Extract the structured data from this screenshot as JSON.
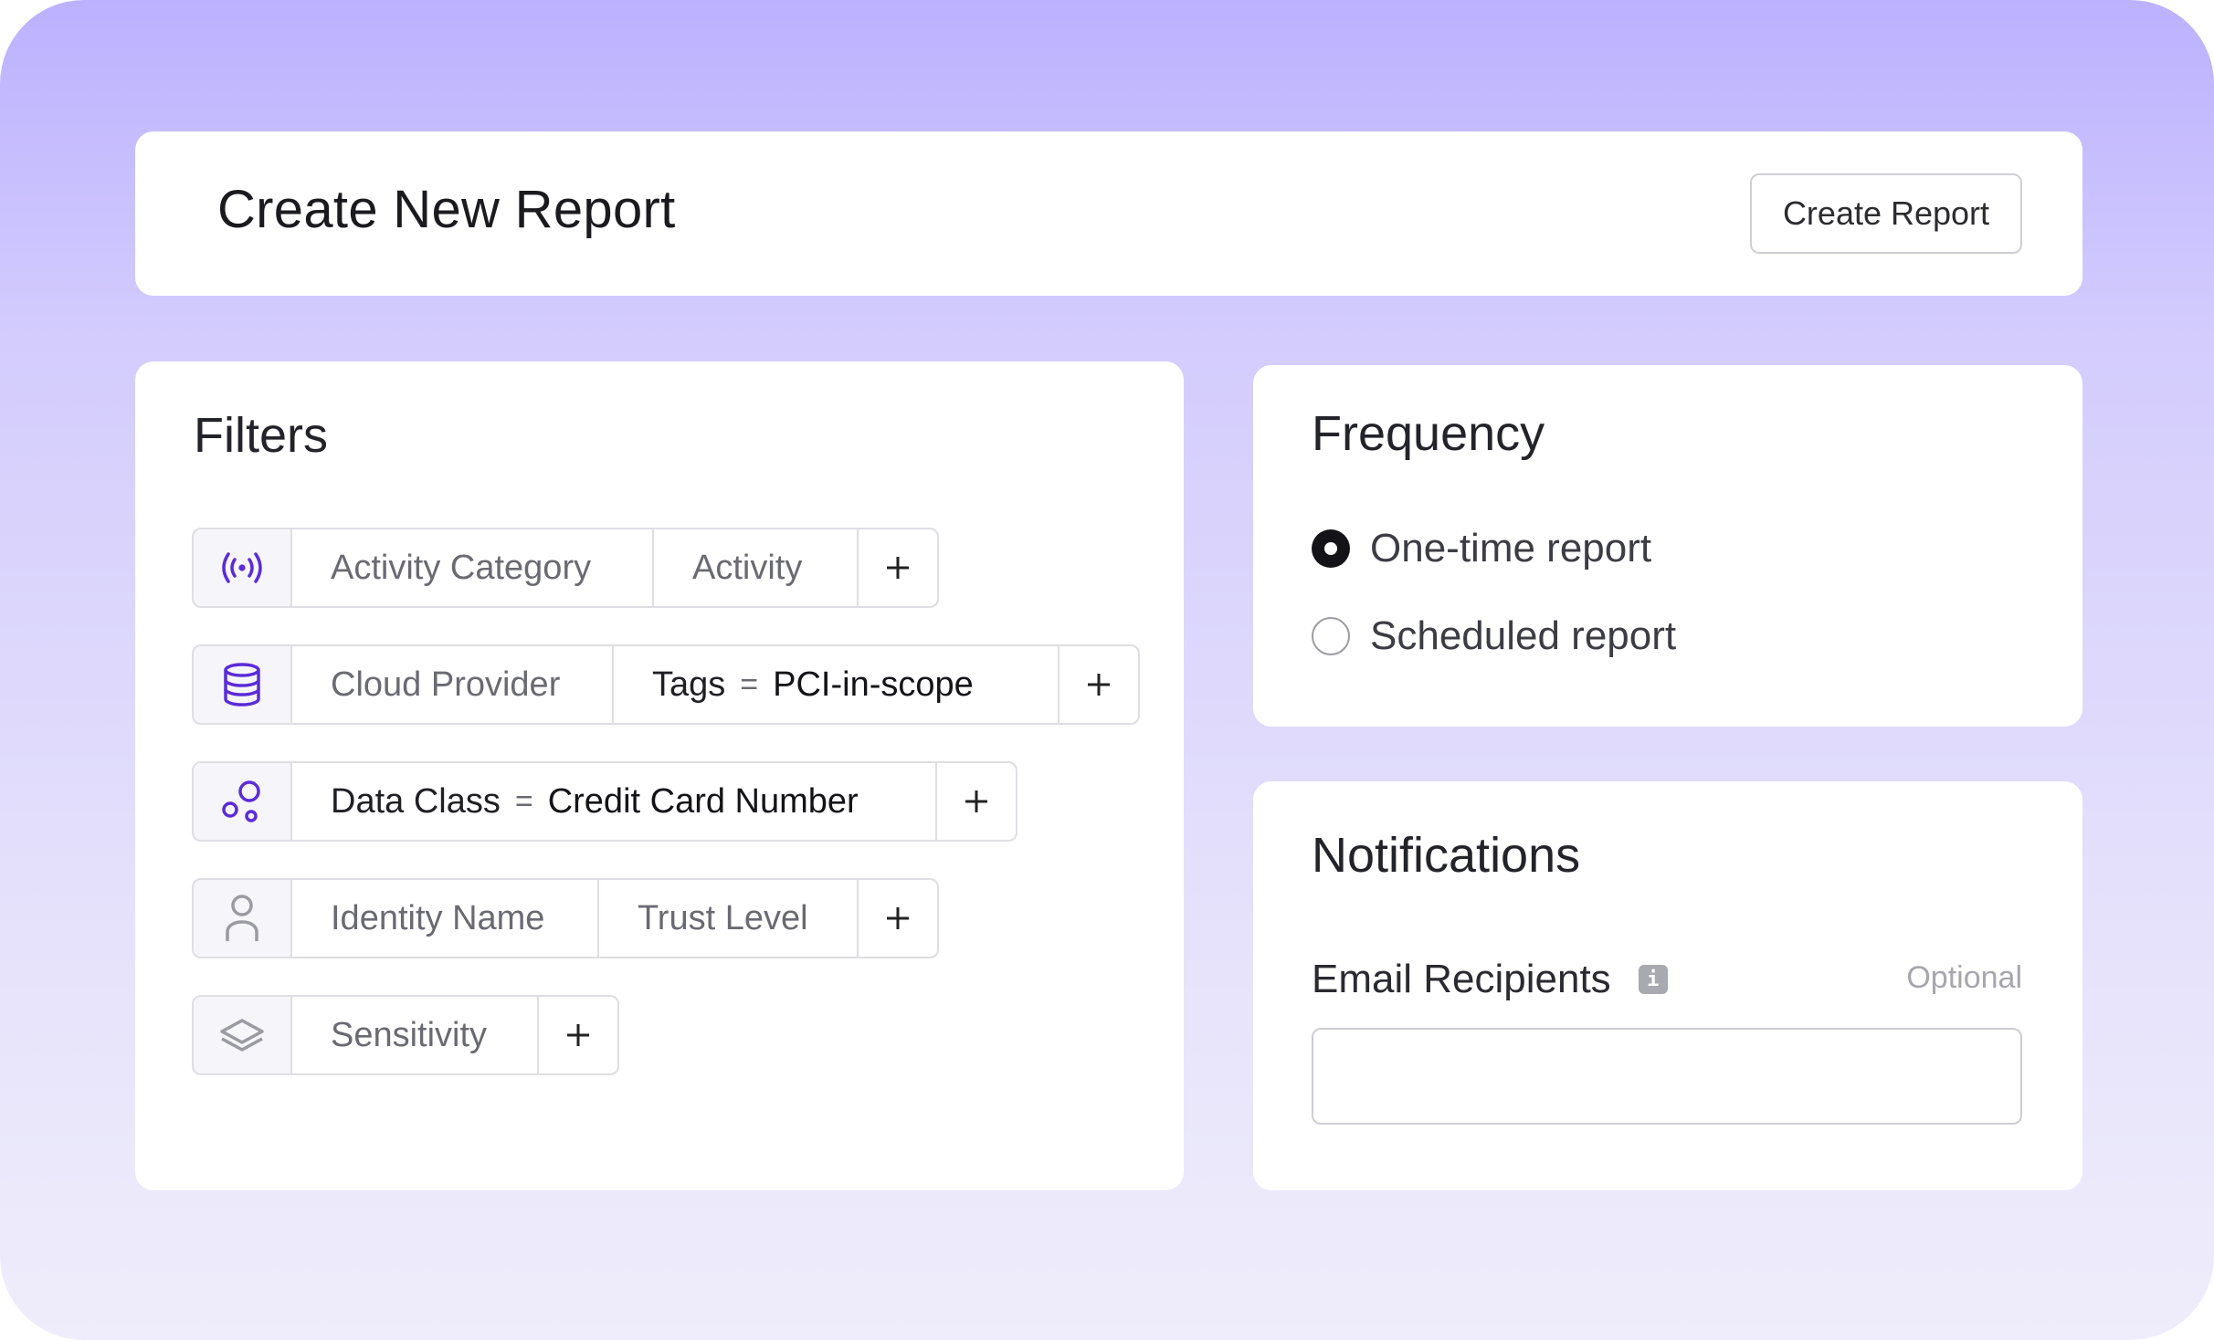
{
  "header": {
    "title": "Create New Report",
    "create_button_label": "Create Report"
  },
  "filters": {
    "title": "Filters",
    "rows": [
      {
        "icon": "activity-signal-icon",
        "segments": [
          "Activity Category",
          "Activity"
        ]
      },
      {
        "icon": "database-icon",
        "segments": [
          "Cloud Provider"
        ],
        "condition": {
          "key": "Tags",
          "op": "=",
          "value": "PCI-in-scope"
        }
      },
      {
        "icon": "data-class-bubbles-icon",
        "condition": {
          "key": "Data Class",
          "op": "=",
          "value": "Credit Card Number"
        }
      },
      {
        "icon": "person-icon",
        "segments": [
          "Identity Name",
          "Trust Level"
        ]
      },
      {
        "icon": "layers-icon",
        "segments": [
          "Sensitivity"
        ]
      }
    ],
    "add_symbol": "+"
  },
  "frequency": {
    "title": "Frequency",
    "options": [
      {
        "label": "One-time report",
        "selected": true
      },
      {
        "label": "Scheduled report",
        "selected": false
      }
    ]
  },
  "notifications": {
    "title": "Notifications",
    "email_label": "Email Recipients",
    "info_glyph": "i",
    "optional_text": "Optional",
    "email_value": "",
    "email_placeholder": ""
  },
  "colors": {
    "accent_purple": "#5b2bd8",
    "background_top": "#bcb1ff",
    "background_bottom": "#efedfb",
    "icon_gray": "#9a9aa2"
  }
}
